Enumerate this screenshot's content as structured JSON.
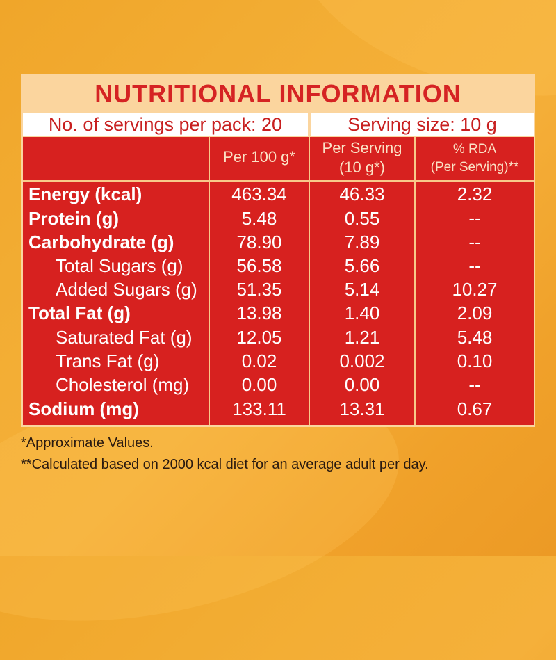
{
  "title": "NUTRITIONAL INFORMATION",
  "servings_per_pack": "No. of servings per pack: 20",
  "serving_size": "Serving size: 10 g",
  "headers": {
    "per100_line1": "Per 100 g*",
    "perserving_line1": "Per Serving",
    "perserving_line2": "(10 g*)",
    "rda_line1": "% RDA",
    "rda_line2": "(Per Serving)**"
  },
  "rows": [
    {
      "label": "Energy (kcal)",
      "per100": "463.34",
      "serving": "46.33",
      "rda": "2.32"
    },
    {
      "label": "Protein (g)",
      "per100": "5.48",
      "serving": "0.55",
      "rda": "--"
    },
    {
      "label": "Carbohydrate (g)",
      "per100": "78.90",
      "serving": "7.89",
      "rda": "--"
    },
    {
      "label": "Total Sugars (g)",
      "per100": "56.58",
      "serving": "5.66",
      "rda": "--"
    },
    {
      "label": "Added Sugars (g)",
      "per100": "51.35",
      "serving": "5.14",
      "rda": "10.27"
    },
    {
      "label": "Total Fat (g)",
      "per100": "13.98",
      "serving": "1.40",
      "rda": "2.09"
    },
    {
      "label": "Saturated Fat (g)",
      "per100": "12.05",
      "serving": "1.21",
      "rda": "5.48"
    },
    {
      "label": "Trans Fat (g)",
      "per100": "0.02",
      "serving": "0.002",
      "rda": "0.10"
    },
    {
      "label": "Cholesterol (mg)",
      "per100": "0.00",
      "serving": "0.00",
      "rda": "--"
    },
    {
      "label": "Sodium (mg)",
      "per100": "133.11",
      "serving": "13.31",
      "rda": "0.67"
    }
  ],
  "footnotes": {
    "approx": "*Approximate Values.",
    "calc": "**Calculated based on 2000 kcal diet for an average adult per day."
  },
  "colors": {
    "background": "#f3ab33",
    "panel": "#fbd59e",
    "table_red": "#d7211f",
    "title_red": "#d52323"
  }
}
